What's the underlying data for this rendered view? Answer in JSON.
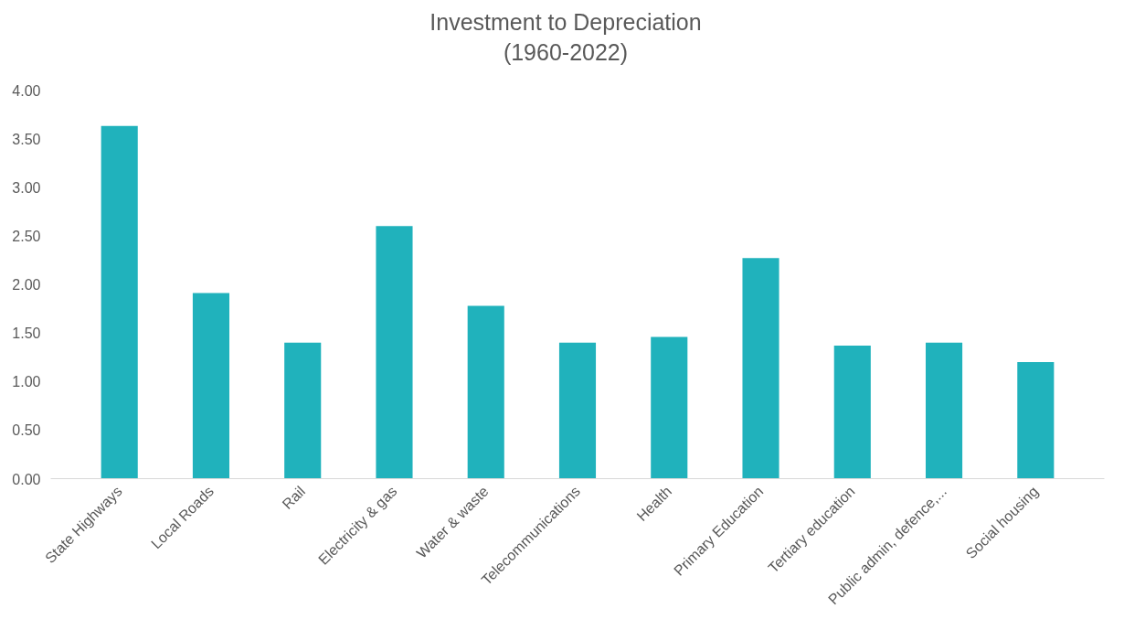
{
  "chart_data": {
    "type": "bar",
    "title": "Investment to Depreciation\n(1960-2022)",
    "categories": [
      "State Highways",
      "Local Roads",
      "Rail",
      "Electricity & gas",
      "Water & waste",
      "Telecommunications",
      "Health",
      "Primary Education",
      "Tertiary education",
      "Public admin, defence,...",
      "Social housing"
    ],
    "values": [
      3.63,
      1.91,
      1.4,
      2.6,
      1.78,
      1.4,
      1.46,
      2.27,
      1.37,
      1.4,
      1.2
    ],
    "color": "#20b2bc",
    "ylim": [
      0,
      4
    ],
    "yticks": [
      {
        "value": 0,
        "label": "0.00"
      },
      {
        "value": 0.5,
        "label": "0.50"
      },
      {
        "value": 1,
        "label": "1.00"
      },
      {
        "value": 1.5,
        "label": "1.50"
      },
      {
        "value": 2,
        "label": "2.00"
      },
      {
        "value": 2.5,
        "label": "2.50"
      },
      {
        "value": 3,
        "label": "3.00"
      },
      {
        "value": 3.5,
        "label": "3.50"
      },
      {
        "value": 4,
        "label": "4.00"
      }
    ],
    "grid": false
  }
}
